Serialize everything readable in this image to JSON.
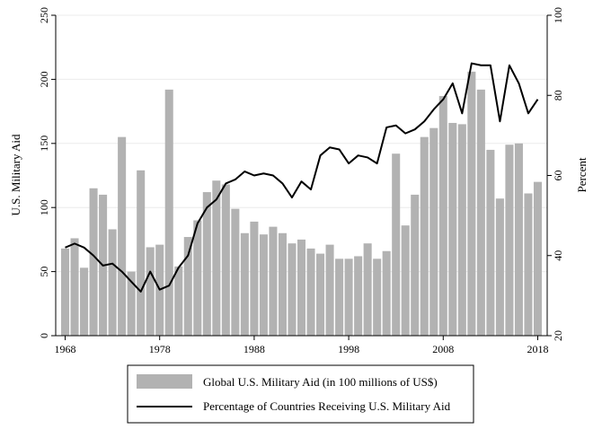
{
  "chart_data": {
    "type": "bar",
    "title": "",
    "xlabel": "",
    "ylabel": "U.S. Military Aid",
    "y2label": "Percent",
    "grid": true,
    "legend_position": "bottom",
    "xlim": [
      1967,
      2019
    ],
    "ylim": [
      0,
      250
    ],
    "y2lim": [
      20,
      100
    ],
    "x_ticks": [
      1968,
      1978,
      1988,
      1998,
      2008,
      2018
    ],
    "y_ticks": [
      0,
      50,
      100,
      150,
      200,
      250
    ],
    "y2_ticks": [
      20,
      40,
      60,
      80,
      100
    ],
    "x": [
      1968,
      1969,
      1970,
      1971,
      1972,
      1973,
      1974,
      1975,
      1976,
      1977,
      1978,
      1979,
      1980,
      1981,
      1982,
      1983,
      1984,
      1985,
      1986,
      1987,
      1988,
      1989,
      1990,
      1991,
      1992,
      1993,
      1994,
      1995,
      1996,
      1997,
      1998,
      1999,
      2000,
      2001,
      2002,
      2003,
      2004,
      2005,
      2006,
      2007,
      2008,
      2009,
      2010,
      2011,
      2012,
      2013,
      2014,
      2015,
      2016,
      2017,
      2018
    ],
    "series": [
      {
        "name": "Global U.S. Military Aid (in 100 millions of US$)",
        "type": "bar",
        "axis": "left",
        "color": "#b2b2b2",
        "values": [
          68,
          76,
          53,
          115,
          110,
          83,
          155,
          50,
          129,
          69,
          71,
          192,
          54,
          77,
          90,
          112,
          121,
          118,
          99,
          80,
          89,
          79,
          85,
          80,
          72,
          75,
          68,
          64,
          71,
          60,
          60,
          62,
          72,
          60,
          66,
          142,
          86,
          110,
          155,
          162,
          187,
          166,
          165,
          206,
          192,
          145,
          107,
          149,
          150,
          111,
          120
        ]
      },
      {
        "name": "Percentage of Countries Receiving U.S. Military Aid",
        "type": "line",
        "axis": "right",
        "color": "#000000",
        "values": [
          42,
          43,
          42,
          40,
          37.5,
          38,
          36,
          33.5,
          31,
          36,
          31.5,
          32.5,
          37,
          40,
          48,
          52,
          54,
          58,
          59,
          61,
          60,
          60.5,
          60,
          58,
          54.5,
          58.5,
          56.5,
          65,
          67,
          66.5,
          63,
          65,
          64.5,
          63,
          72,
          72.5,
          70.5,
          71.5,
          73.5,
          76.5,
          79,
          83,
          75.5,
          88,
          87.5,
          87.5,
          73.5,
          87.5,
          83,
          75.5,
          79
        ]
      }
    ]
  },
  "legend": {
    "items": [
      {
        "label": "Global U.S. Military Aid (in 100 millions of US$)",
        "swatch": "bar",
        "color": "#b2b2b2"
      },
      {
        "label": "Percentage of Countries Receiving U.S. Military Aid",
        "swatch": "line",
        "color": "#000000"
      }
    ]
  }
}
